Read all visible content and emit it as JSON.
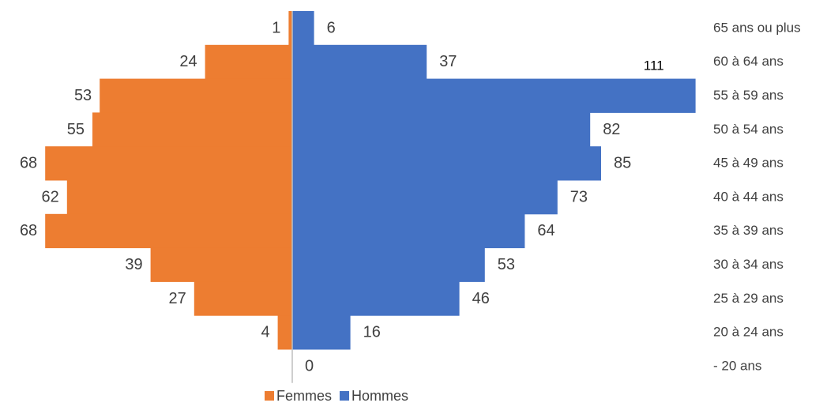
{
  "chart_data": {
    "type": "bar",
    "orientation": "horizontal",
    "layout": "population-pyramid",
    "title": "",
    "xlabel": "",
    "ylabel": "",
    "categories": [
      "65 ans ou plus",
      "60 à 64 ans",
      "55 à 59 ans",
      "50 à 54 ans",
      "45 à 49 ans",
      "40 à 44 ans",
      "35 à 39 ans",
      "30 à 34 ans",
      "25 à 29 ans",
      "20 à 24 ans",
      "- 20 ans"
    ],
    "series": [
      {
        "name": "Femmes",
        "color": "#ED7D31",
        "side": "left",
        "values": [
          1,
          24,
          53,
          55,
          68,
          62,
          68,
          39,
          27,
          4,
          0
        ]
      },
      {
        "name": "Hommes",
        "color": "#4472C4",
        "side": "right",
        "values": [
          6,
          37,
          111,
          82,
          85,
          73,
          64,
          53,
          46,
          16,
          0
        ]
      }
    ],
    "data_labels": {
      "Femmes": [
        "1",
        "24",
        "53",
        "55",
        "68",
        "62",
        "68",
        "39",
        "27",
        "4",
        ""
      ],
      "Hommes": [
        "6",
        "37",
        "111",
        "82",
        "85",
        "73",
        "64",
        "53",
        "46",
        "16",
        "0"
      ]
    },
    "grid": false,
    "legend_position": "bottom-center",
    "colors": {
      "axis": "#BFBFBF",
      "text": "#404040"
    }
  }
}
